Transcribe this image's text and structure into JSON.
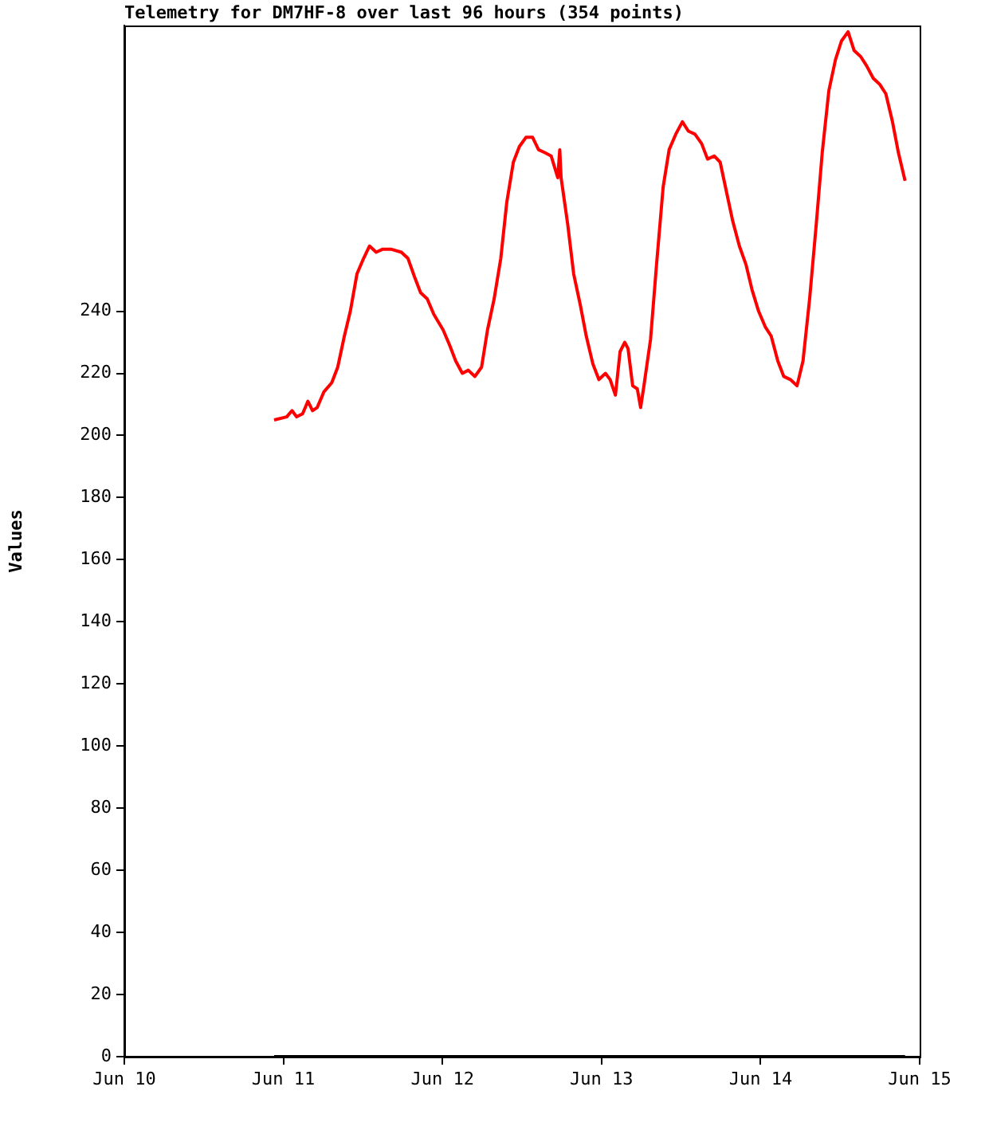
{
  "chart_data": {
    "type": "line",
    "title": "Telemetry for DM7HF-8 over last 96 hours (354 points)",
    "ylabel": "Values",
    "xlim": [
      "--06-10",
      "--06-15"
    ],
    "xticks": [
      {
        "value": "--06-10",
        "label": "Jun 10"
      },
      {
        "value": "--06-11",
        "label": "Jun 11"
      },
      {
        "value": "--06-12",
        "label": "Jun 12"
      },
      {
        "value": "--06-13",
        "label": "Jun 13"
      },
      {
        "value": "--06-14",
        "label": "Jun 14"
      },
      {
        "value": "--06-15",
        "label": "Jun 15"
      }
    ],
    "ylim": [
      0,
      332
    ],
    "yticks": [
      0,
      20,
      40,
      60,
      80,
      100,
      120,
      140,
      160,
      180,
      200,
      220,
      240
    ],
    "series": [
      {
        "color": "#000000",
        "x": [
          "--06-10T22:36",
          "--06-14T21:48"
        ],
        "values": [
          0,
          0
        ]
      },
      {
        "color": "#ff0000",
        "x": [
          "--06-10T22:36",
          "--06-11T00:30",
          "--06-11T01:18",
          "--06-11T02:00",
          "--06-11T02:54",
          "--06-11T03:42",
          "--06-11T04:24",
          "--06-11T05:06",
          "--06-11T06:06",
          "--06-11T07:18",
          "--06-11T08:12",
          "--06-11T09:12",
          "--06-11T10:06",
          "--06-11T11:06",
          "--06-11T12:06",
          "--06-11T13:00",
          "--06-11T14:00",
          "--06-11T15:00",
          "--06-11T16:12",
          "--06-11T17:48",
          "--06-11T18:48",
          "--06-11T19:48",
          "--06-11T20:42",
          "--06-11T21:42",
          "--06-11T22:42",
          "--06-12T00:06",
          "--06-12T01:06",
          "--06-12T02:00",
          "--06-12T03:00",
          "--06-12T03:54",
          "--06-12T04:54",
          "--06-12T05:54",
          "--06-12T06:48",
          "--06-12T07:48",
          "--06-12T08:48",
          "--06-12T09:42",
          "--06-12T10:42",
          "--06-12T11:36",
          "--06-12T12:36",
          "--06-12T13:36",
          "--06-12T14:30",
          "--06-12T15:30",
          "--06-12T16:24",
          "--06-12T17:24",
          "--06-12T17:42",
          "--06-12T17:54",
          "--06-12T18:54",
          "--06-12T19:48",
          "--06-12T20:48",
          "--06-12T21:42",
          "--06-12T22:42",
          "--06-12T23:36",
          "--06-13T00:36",
          "--06-13T01:18",
          "--06-13T02:06",
          "--06-13T02:48",
          "--06-13T03:30",
          "--06-13T04:00",
          "--06-13T04:42",
          "--06-13T05:24",
          "--06-13T05:54",
          "--06-13T06:24",
          "--06-13T07:24",
          "--06-13T08:18",
          "--06-13T09:18",
          "--06-13T10:12",
          "--06-13T11:12",
          "--06-13T12:12",
          "--06-13T13:06",
          "--06-13T14:06",
          "--06-13T15:06",
          "--06-13T16:00",
          "--06-13T17:00",
          "--06-13T17:54",
          "--06-13T18:54",
          "--06-13T19:48",
          "--06-13T20:48",
          "--06-13T21:48",
          "--06-13T22:42",
          "--06-13T23:42",
          "--06-14T00:42",
          "--06-14T01:36",
          "--06-14T02:36",
          "--06-14T03:30",
          "--06-14T04:30",
          "--06-14T05:30",
          "--06-14T06:24",
          "--06-14T07:24",
          "--06-14T08:24",
          "--06-14T09:18",
          "--06-14T10:18",
          "--06-14T11:18",
          "--06-14T12:12",
          "--06-14T13:12",
          "--06-14T14:06",
          "--06-14T15:06",
          "--06-14T16:00",
          "--06-14T17:00",
          "--06-14T18:00",
          "--06-14T18:54",
          "--06-14T19:54",
          "--06-14T20:48",
          "--06-14T21:48"
        ],
        "values": [
          205,
          206,
          208,
          206,
          207,
          211,
          208,
          209,
          214,
          217,
          222,
          232,
          240,
          252,
          257,
          261,
          259,
          260,
          260,
          259,
          257,
          251,
          246,
          244,
          239,
          234,
          229,
          224,
          220,
          221,
          219,
          222,
          234,
          244,
          257,
          275,
          288,
          293,
          296,
          296,
          292,
          291,
          290,
          283,
          292,
          283,
          268,
          252,
          242,
          232,
          223,
          218,
          220,
          218,
          213,
          227,
          230,
          228,
          216,
          215,
          209,
          216,
          231,
          255,
          280,
          292,
          297,
          301,
          298,
          297,
          294,
          289,
          290,
          288,
          278,
          269,
          261,
          255,
          247,
          240,
          235,
          232,
          224,
          219,
          218,
          216,
          224,
          244,
          268,
          291,
          311,
          321,
          327,
          330,
          324,
          322,
          319,
          315,
          313,
          310,
          301,
          291,
          282
        ]
      }
    ]
  }
}
